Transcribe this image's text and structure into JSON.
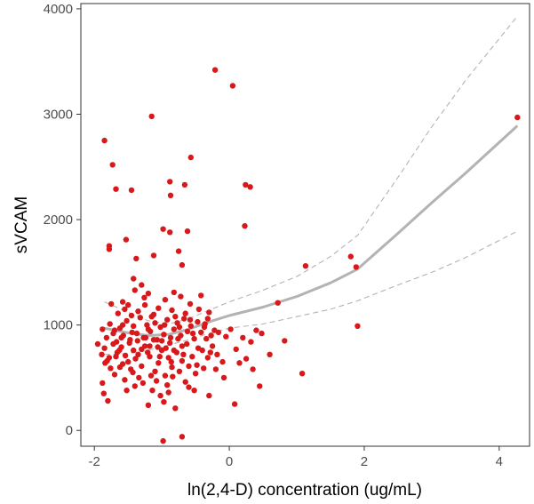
{
  "chart_data": {
    "type": "scatter",
    "title": "",
    "xlabel": "ln(2,4-D) concentration (ug/mL)",
    "ylabel": "sVCAM",
    "xlim": [
      -2.2,
      4.45
    ],
    "ylim": [
      -150,
      4050
    ],
    "x_ticks": [
      -2,
      0,
      2,
      4
    ],
    "y_ticks": [
      0,
      1000,
      2000,
      3000,
      4000
    ],
    "grid": false,
    "legend": "none",
    "colors": {
      "points": "#d7191c",
      "fit": "#b3b3b3",
      "ci": "#b3b3b3",
      "axis": "#333333"
    },
    "points": [
      [
        -1.85,
        2750
      ],
      [
        -1.73,
        2520
      ],
      [
        -1.68,
        2290
      ],
      [
        -1.45,
        2280
      ],
      [
        -1.15,
        2980
      ],
      [
        -0.57,
        2590
      ],
      [
        -0.88,
        2360
      ],
      [
        -0.87,
        2230
      ],
      [
        -0.98,
        1910
      ],
      [
        -0.66,
        2330
      ],
      [
        -0.21,
        3420
      ],
      [
        0.05,
        3270
      ],
      [
        0.24,
        2330
      ],
      [
        0.31,
        2310
      ],
      [
        0.23,
        1940
      ],
      [
        -1.78,
        1750
      ],
      [
        -1.78,
        1720
      ],
      [
        -1.53,
        1810
      ],
      [
        -0.88,
        1880
      ],
      [
        -0.62,
        1890
      ],
      [
        -0.75,
        1700
      ],
      [
        -0.7,
        1570
      ],
      [
        -1.38,
        1630
      ],
      [
        -1.12,
        1660
      ],
      [
        -1.42,
        1440
      ],
      [
        -1.3,
        1380
      ],
      [
        -1.4,
        1330
      ],
      [
        -1.26,
        1260
      ],
      [
        -1.2,
        1300
      ],
      [
        -1.58,
        1220
      ],
      [
        -1.5,
        1190
      ],
      [
        -1.05,
        1160
      ],
      [
        -0.95,
        1240
      ],
      [
        -0.82,
        1310
      ],
      [
        -0.72,
        1270
      ],
      [
        -0.58,
        1200
      ],
      [
        -0.45,
        1150
      ],
      [
        -0.3,
        1120
      ],
      [
        0.72,
        1210
      ],
      [
        1.13,
        1560
      ],
      [
        1.8,
        1650
      ],
      [
        1.88,
        1550
      ],
      [
        1.9,
        990
      ],
      [
        4.27,
        2970
      ],
      [
        0.82,
        850
      ],
      [
        1.08,
        540
      ],
      [
        0.48,
        920
      ],
      [
        0.4,
        950
      ],
      [
        0.32,
        840
      ],
      [
        0.2,
        880
      ],
      [
        0.1,
        770
      ],
      [
        0.25,
        680
      ],
      [
        0.45,
        420
      ],
      [
        0.08,
        250
      ],
      [
        -1.2,
        240
      ],
      [
        -0.97,
        270
      ],
      [
        -0.8,
        210
      ],
      [
        -0.65,
        460
      ],
      [
        -0.3,
        330
      ],
      [
        -0.52,
        380
      ],
      [
        -0.98,
        -100
      ],
      [
        -0.7,
        -60
      ],
      [
        -1.8,
        280
      ],
      [
        -1.86,
        350
      ],
      [
        -1.88,
        450
      ],
      [
        -1.7,
        530
      ],
      [
        -1.62,
        600
      ],
      [
        -1.55,
        480
      ],
      [
        -1.5,
        650
      ],
      [
        -1.43,
        550
      ],
      [
        -1.35,
        720
      ],
      [
        -1.3,
        610
      ],
      [
        -1.25,
        800
      ],
      [
        -1.18,
        700
      ],
      [
        -1.1,
        560
      ],
      [
        -1.05,
        640
      ],
      [
        -1.0,
        760
      ],
      [
        -0.95,
        520
      ],
      [
        -0.9,
        690
      ],
      [
        -0.85,
        600
      ],
      [
        -0.78,
        740
      ],
      [
        -0.7,
        660
      ],
      [
        -0.63,
        820
      ],
      [
        -0.55,
        700
      ],
      [
        -0.48,
        620
      ],
      [
        -0.4,
        760
      ],
      [
        -0.32,
        690
      ],
      [
        -0.25,
        800
      ],
      [
        -0.18,
        720
      ],
      [
        -0.1,
        650
      ],
      [
        -0.05,
        890
      ],
      [
        -1.88,
        960
      ],
      [
        -1.82,
        880
      ],
      [
        -1.77,
        1010
      ],
      [
        -1.72,
        920
      ],
      [
        -1.67,
        840
      ],
      [
        -1.62,
        970
      ],
      [
        -1.57,
        900
      ],
      [
        -1.52,
        1040
      ],
      [
        -1.47,
        860
      ],
      [
        -1.42,
        990
      ],
      [
        -1.37,
        920
      ],
      [
        -1.32,
        1070
      ],
      [
        -1.27,
        880
      ],
      [
        -1.22,
        1000
      ],
      [
        -1.17,
        940
      ],
      [
        -1.12,
        1100
      ],
      [
        -1.07,
        860
      ],
      [
        -1.02,
        980
      ],
      [
        -0.97,
        910
      ],
      [
        -0.92,
        1050
      ],
      [
        -0.87,
        880
      ],
      [
        -0.82,
        960
      ],
      [
        -0.77,
        1020
      ],
      [
        -0.72,
        900
      ],
      [
        -0.67,
        1060
      ],
      [
        -0.62,
        940
      ],
      [
        -0.57,
        990
      ],
      [
        -0.52,
        870
      ],
      [
        -0.47,
        1030
      ],
      [
        -0.42,
        930
      ],
      [
        -0.37,
        980
      ],
      [
        -0.32,
        1060
      ],
      [
        -0.27,
        900
      ],
      [
        -0.22,
        950
      ],
      [
        -1.85,
        780
      ],
      [
        -1.78,
        690
      ],
      [
        -1.72,
        820
      ],
      [
        -1.66,
        740
      ],
      [
        -1.6,
        790
      ],
      [
        -1.54,
        710
      ],
      [
        -1.48,
        830
      ],
      [
        -1.42,
        760
      ],
      [
        -1.36,
        850
      ],
      [
        -1.3,
        770
      ],
      [
        -1.24,
        880
      ],
      [
        -1.18,
        800
      ],
      [
        -1.12,
        860
      ],
      [
        -1.06,
        790
      ],
      [
        -1.0,
        850
      ],
      [
        -0.94,
        780
      ],
      [
        -0.88,
        830
      ],
      [
        -0.82,
        760
      ],
      [
        -0.76,
        870
      ],
      [
        -0.7,
        800
      ],
      [
        -1.84,
        640
      ],
      [
        -1.76,
        590
      ],
      [
        -1.68,
        700
      ],
      [
        -1.58,
        630
      ],
      [
        -1.46,
        580
      ],
      [
        -1.34,
        500
      ],
      [
        -1.28,
        450
      ],
      [
        -1.16,
        520
      ],
      [
        -1.08,
        470
      ],
      [
        -0.92,
        430
      ],
      [
        -0.84,
        510
      ],
      [
        -0.74,
        560
      ],
      [
        -0.6,
        610
      ],
      [
        -0.5,
        540
      ],
      [
        -0.38,
        590
      ],
      [
        -0.2,
        580
      ],
      [
        -0.08,
        500
      ],
      [
        -1.65,
        1110
      ],
      [
        -1.55,
        1150
      ],
      [
        -1.45,
        1090
      ],
      [
        -1.35,
        1130
      ],
      [
        -1.25,
        1190
      ],
      [
        -1.15,
        1080
      ],
      [
        -0.85,
        1140
      ],
      [
        -0.65,
        1110
      ],
      [
        -1.75,
        1200
      ],
      [
        -0.42,
        1280
      ],
      [
        -1.7,
        950
      ],
      [
        -1.6,
        880
      ],
      [
        -1.44,
        930
      ],
      [
        -1.2,
        960
      ],
      [
        -0.96,
        1000
      ],
      [
        -0.74,
        980
      ],
      [
        -0.54,
        920
      ],
      [
        -0.34,
        870
      ],
      [
        -0.16,
        930
      ],
      [
        0.02,
        960
      ],
      [
        -1.89,
        720
      ],
      [
        -1.81,
        660
      ],
      [
        -1.63,
        760
      ],
      [
        -1.39,
        680
      ],
      [
        -1.21,
        740
      ],
      [
        -1.03,
        700
      ],
      [
        -0.86,
        650
      ],
      [
        -0.68,
        720
      ],
      [
        -0.46,
        780
      ],
      [
        -0.28,
        740
      ],
      [
        -1.52,
        380
      ],
      [
        -1.4,
        420
      ],
      [
        -1.14,
        380
      ],
      [
        -1.02,
        330
      ],
      [
        -0.9,
        360
      ],
      [
        -0.6,
        410
      ],
      [
        0.35,
        580
      ],
      [
        0.6,
        720
      ],
      [
        0.15,
        640
      ],
      [
        -1.95,
        820
      ],
      [
        -1.58,
        1000
      ],
      [
        -1.1,
        1020
      ],
      [
        -0.8,
        1080
      ],
      [
        -0.58,
        1050
      ],
      [
        -0.36,
        1010
      ]
    ],
    "fit_line": [
      [
        -1.85,
        970
      ],
      [
        -1.5,
        925
      ],
      [
        -1.2,
        900
      ],
      [
        -0.9,
        910
      ],
      [
        -0.6,
        960
      ],
      [
        -0.3,
        1030
      ],
      [
        0.0,
        1090
      ],
      [
        0.5,
        1170
      ],
      [
        1.0,
        1270
      ],
      [
        1.5,
        1400
      ],
      [
        1.9,
        1530
      ],
      [
        2.5,
        1870
      ],
      [
        3.0,
        2160
      ],
      [
        3.5,
        2440
      ],
      [
        4.27,
        2890
      ]
    ],
    "ci_upper": [
      [
        -1.85,
        1220
      ],
      [
        -1.5,
        1120
      ],
      [
        -1.2,
        1040
      ],
      [
        -0.9,
        1010
      ],
      [
        -0.6,
        1060
      ],
      [
        -0.3,
        1140
      ],
      [
        0.0,
        1220
      ],
      [
        0.5,
        1330
      ],
      [
        1.0,
        1460
      ],
      [
        1.5,
        1650
      ],
      [
        1.9,
        1850
      ],
      [
        2.5,
        2400
      ],
      [
        3.0,
        2880
      ],
      [
        3.5,
        3320
      ],
      [
        4.27,
        3930
      ]
    ],
    "ci_lower": [
      [
        -1.85,
        720
      ],
      [
        -1.5,
        730
      ],
      [
        -1.2,
        760
      ],
      [
        -0.9,
        810
      ],
      [
        -0.6,
        860
      ],
      [
        -0.3,
        920
      ],
      [
        0.0,
        970
      ],
      [
        0.5,
        1010
      ],
      [
        1.0,
        1080
      ],
      [
        1.5,
        1150
      ],
      [
        1.9,
        1230
      ],
      [
        2.5,
        1380
      ],
      [
        3.0,
        1500
      ],
      [
        3.5,
        1640
      ],
      [
        4.27,
        1890
      ]
    ]
  }
}
